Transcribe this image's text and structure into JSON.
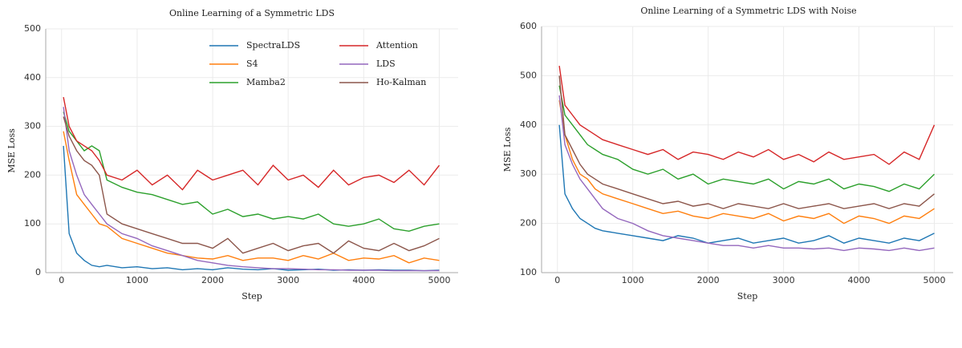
{
  "chart_data": [
    {
      "type": "line",
      "title": "Online Learning of a Symmetric LDS",
      "xlabel": "Step",
      "ylabel": "MSE Loss",
      "x": [
        25,
        100,
        200,
        300,
        400,
        500,
        600,
        800,
        1000,
        1200,
        1400,
        1600,
        1800,
        2000,
        2200,
        2400,
        2600,
        2800,
        3000,
        3200,
        3400,
        3600,
        3800,
        4000,
        4200,
        4400,
        4600,
        4800,
        5000
      ],
      "xlim": [
        -210,
        5250
      ],
      "xticks": [
        0,
        1000,
        2000,
        3000,
        4000,
        5000
      ],
      "ylim": [
        0,
        500
      ],
      "yticks": [
        0,
        100,
        200,
        300,
        400,
        500
      ],
      "grid": true,
      "legend": "upper right",
      "series": [
        {
          "name": "SpectraLDS",
          "color": "#1f77b4",
          "values": [
            260,
            80,
            40,
            25,
            15,
            12,
            15,
            10,
            12,
            8,
            10,
            6,
            8,
            6,
            10,
            7,
            6,
            8,
            5,
            6,
            7,
            5,
            6,
            5,
            6,
            5,
            5,
            4,
            5
          ]
        },
        {
          "name": "S4",
          "color": "#ff7f0e",
          "values": [
            290,
            230,
            160,
            140,
            120,
            100,
            95,
            70,
            60,
            50,
            40,
            35,
            30,
            28,
            35,
            25,
            30,
            30,
            25,
            35,
            28,
            40,
            25,
            30,
            28,
            35,
            20,
            30,
            25
          ]
        },
        {
          "name": "Mamba2",
          "color": "#2ca02c",
          "values": [
            330,
            290,
            270,
            250,
            260,
            250,
            190,
            175,
            165,
            160,
            150,
            140,
            145,
            120,
            130,
            115,
            120,
            110,
            115,
            110,
            120,
            100,
            95,
            100,
            110,
            90,
            85,
            95,
            100
          ]
        },
        {
          "name": "Attention",
          "color": "#d62728",
          "values": [
            360,
            300,
            270,
            260,
            250,
            230,
            200,
            190,
            210,
            180,
            200,
            170,
            210,
            190,
            200,
            210,
            180,
            220,
            190,
            200,
            175,
            210,
            180,
            195,
            200,
            185,
            210,
            180,
            220
          ]
        },
        {
          "name": "LDS",
          "color": "#9467bd",
          "values": [
            340,
            250,
            200,
            160,
            140,
            120,
            100,
            80,
            70,
            55,
            45,
            35,
            25,
            20,
            15,
            12,
            10,
            8,
            8,
            7,
            6,
            6,
            5,
            5,
            5,
            4,
            4,
            4,
            4
          ]
        },
        {
          "name": "Ho-Kalman",
          "color": "#8c564b",
          "values": [
            320,
            280,
            250,
            230,
            220,
            200,
            120,
            100,
            90,
            80,
            70,
            60,
            60,
            50,
            70,
            40,
            50,
            60,
            45,
            55,
            60,
            40,
            65,
            50,
            45,
            60,
            45,
            55,
            70
          ]
        }
      ]
    },
    {
      "type": "line",
      "title": "Online Learning of a Symmetric LDS with Noise",
      "xlabel": "Step",
      "ylabel": "MSE Loss",
      "x": [
        25,
        100,
        200,
        300,
        400,
        500,
        600,
        800,
        1000,
        1200,
        1400,
        1600,
        1800,
        2000,
        2200,
        2400,
        2600,
        2800,
        3000,
        3200,
        3400,
        3600,
        3800,
        4000,
        4200,
        4400,
        4600,
        4800,
        5000
      ],
      "xlim": [
        -210,
        5250
      ],
      "xticks": [
        0,
        1000,
        2000,
        3000,
        4000,
        5000
      ],
      "ylim": [
        100,
        600
      ],
      "yticks": [
        100,
        200,
        300,
        400,
        500,
        600
      ],
      "grid": true,
      "series": [
        {
          "color": "#1f77b4",
          "values": [
            400,
            260,
            230,
            210,
            200,
            190,
            185,
            180,
            175,
            170,
            165,
            175,
            170,
            160,
            165,
            170,
            160,
            165,
            170,
            160,
            165,
            175,
            160,
            170,
            165,
            160,
            170,
            165,
            180
          ]
        },
        {
          "color": "#ff7f0e",
          "values": [
            450,
            380,
            330,
            300,
            290,
            270,
            260,
            250,
            240,
            230,
            220,
            225,
            215,
            210,
            220,
            215,
            210,
            220,
            205,
            215,
            210,
            220,
            200,
            215,
            210,
            200,
            215,
            210,
            230
          ]
        },
        {
          "color": "#2ca02c",
          "values": [
            480,
            420,
            400,
            380,
            360,
            350,
            340,
            330,
            310,
            300,
            310,
            290,
            300,
            280,
            290,
            285,
            280,
            290,
            270,
            285,
            280,
            290,
            270,
            280,
            275,
            265,
            280,
            270,
            300
          ]
        },
        {
          "color": "#d62728",
          "values": [
            520,
            440,
            420,
            400,
            390,
            380,
            370,
            360,
            350,
            340,
            350,
            330,
            345,
            340,
            330,
            345,
            335,
            350,
            330,
            340,
            325,
            345,
            330,
            335,
            340,
            320,
            345,
            330,
            400
          ]
        },
        {
          "color": "#9467bd",
          "values": [
            460,
            360,
            320,
            290,
            270,
            250,
            230,
            210,
            200,
            185,
            175,
            170,
            165,
            160,
            155,
            155,
            150,
            155,
            150,
            150,
            148,
            150,
            145,
            150,
            148,
            145,
            150,
            145,
            150
          ]
        },
        {
          "color": "#8c564b",
          "values": [
            500,
            380,
            350,
            320,
            300,
            290,
            280,
            270,
            260,
            250,
            240,
            245,
            235,
            240,
            230,
            240,
            235,
            230,
            240,
            230,
            235,
            240,
            230,
            235,
            240,
            230,
            240,
            235,
            260
          ]
        }
      ]
    }
  ]
}
